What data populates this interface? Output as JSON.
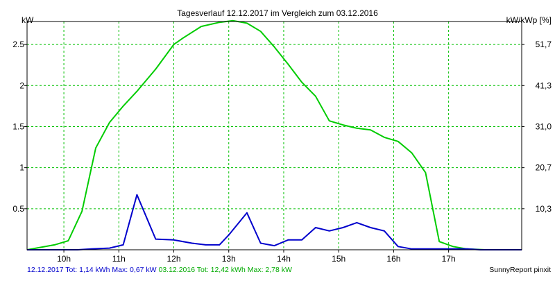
{
  "chart_data": {
    "type": "line",
    "title": "Tagesverlauf 12.12.2017 im Vergleich zum 03.12.2016",
    "ylabel_left": "kW",
    "ylabel_right": "kW/kWp [%]",
    "x_ticks": [
      "10h",
      "11h",
      "12h",
      "13h",
      "14h",
      "15h",
      "16h",
      "17h"
    ],
    "y_ticks_left": [
      "0.5",
      "1",
      "1.5",
      "2",
      "2.5"
    ],
    "y_ticks_right": [
      "10,3",
      "20,7",
      "31,0",
      "41,3",
      "51,7"
    ],
    "xlim": [
      9.33,
      18.33
    ],
    "ylim": [
      0,
      2.78
    ],
    "grid": true,
    "series": [
      {
        "name": "12.12.2017 Tot: 1,14 kWh Max: 0,67 kW",
        "color": "#0000cc",
        "x": [
          9.33,
          10.08,
          10.25,
          10.5,
          10.83,
          11.08,
          11.33,
          11.67,
          12.0,
          12.33,
          12.58,
          12.83,
          13.0,
          13.33,
          13.58,
          13.83,
          14.08,
          14.33,
          14.58,
          14.83,
          15.08,
          15.33,
          15.58,
          15.83,
          16.08,
          16.33,
          16.58,
          17.08,
          17.33,
          17.58,
          18.0,
          18.33
        ],
        "y": [
          0.0,
          0.0,
          0.0,
          0.01,
          0.02,
          0.06,
          0.67,
          0.13,
          0.12,
          0.08,
          0.06,
          0.06,
          0.18,
          0.45,
          0.08,
          0.05,
          0.12,
          0.12,
          0.27,
          0.23,
          0.27,
          0.33,
          0.27,
          0.23,
          0.04,
          0.01,
          0.01,
          0.01,
          0.01,
          0.0,
          0.0,
          0.0
        ]
      },
      {
        "name": "03.12.2016 Tot: 12,42 kWh Max: 2,78 kW",
        "color": "#00cc00",
        "x": [
          9.33,
          9.83,
          10.08,
          10.33,
          10.58,
          10.83,
          11.08,
          11.33,
          11.67,
          12.0,
          12.17,
          12.5,
          12.83,
          13.08,
          13.33,
          13.58,
          13.83,
          14.08,
          14.33,
          14.58,
          14.83,
          15.08,
          15.33,
          15.58,
          15.83,
          16.08,
          16.33,
          16.58,
          16.83,
          17.08,
          17.33,
          17.67,
          18.0,
          18.33
        ],
        "y": [
          0.0,
          0.06,
          0.11,
          0.47,
          1.24,
          1.55,
          1.75,
          1.93,
          2.2,
          2.5,
          2.58,
          2.72,
          2.77,
          2.79,
          2.76,
          2.66,
          2.47,
          2.26,
          2.04,
          1.87,
          1.57,
          1.52,
          1.48,
          1.46,
          1.37,
          1.32,
          1.18,
          0.94,
          0.1,
          0.04,
          0.01,
          0.0,
          0.0,
          0.0
        ]
      }
    ]
  },
  "footer": {
    "series1_text": "12.12.2017 Tot: 1,14 kWh Max: 0,67 kW",
    "series2_text": "03.12.2016 Tot: 12,42 kWh Max: 2,78 kW",
    "brand": "SunnyReport pinxit"
  },
  "colors": {
    "background": "#ffffff",
    "grid": "#00c000",
    "axis": "#000000"
  }
}
